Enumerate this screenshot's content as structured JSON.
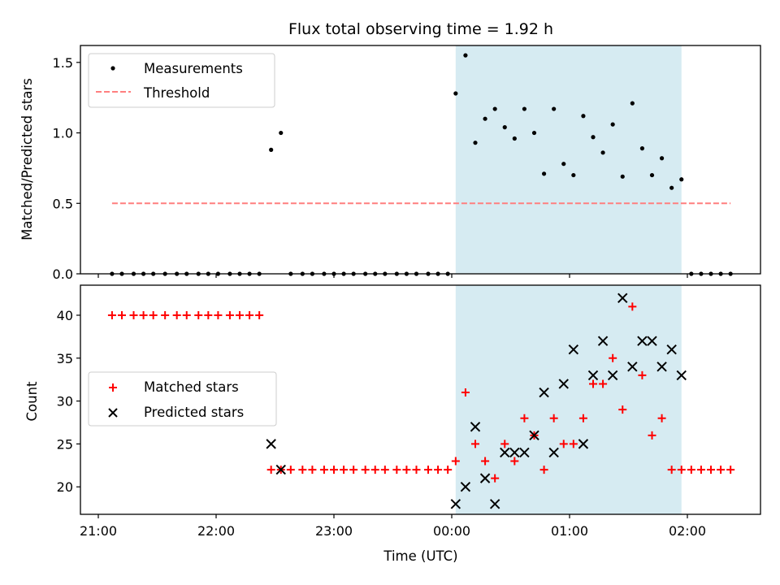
{
  "chart_data": [
    {
      "type": "scatter",
      "title": "Flux total observing time = 1.92 h",
      "xlabel": "",
      "ylabel": "Matched/Predicted stars",
      "ylim": [
        0,
        1.62
      ],
      "yticks": [
        "0.0",
        "0.5",
        "1.0",
        "1.5"
      ],
      "shaded_span": [
        "00:02",
        "01:57"
      ],
      "threshold": 0.5,
      "legend": {
        "placement": "upper-left",
        "entries": [
          "Measurements",
          "Threshold"
        ]
      },
      "series": [
        {
          "name": "Measurements",
          "color": "#000000",
          "marker": "dot",
          "points": [
            [
              "21:07",
              0
            ],
            [
              "21:12",
              0
            ],
            [
              "21:18",
              0
            ],
            [
              "21:23",
              0
            ],
            [
              "21:28",
              0
            ],
            [
              "21:34",
              0
            ],
            [
              "21:40",
              0
            ],
            [
              "21:45",
              0
            ],
            [
              "21:51",
              0
            ],
            [
              "21:56",
              0
            ],
            [
              "22:01",
              0
            ],
            [
              "22:07",
              0
            ],
            [
              "22:12",
              0
            ],
            [
              "22:17",
              0
            ],
            [
              "22:22",
              0
            ],
            [
              "22:28",
              0.88
            ],
            [
              "22:33",
              1.0
            ],
            [
              "22:38",
              0
            ],
            [
              "22:44",
              0
            ],
            [
              "22:49",
              0
            ],
            [
              "22:55",
              0
            ],
            [
              "23:00",
              0
            ],
            [
              "23:05",
              0
            ],
            [
              "23:10",
              0
            ],
            [
              "23:16",
              0
            ],
            [
              "23:21",
              0
            ],
            [
              "23:26",
              0
            ],
            [
              "23:32",
              0
            ],
            [
              "23:37",
              0
            ],
            [
              "23:42",
              0
            ],
            [
              "23:48",
              0
            ],
            [
              "23:53",
              0
            ],
            [
              "23:58",
              0
            ],
            [
              "00:02",
              1.28
            ],
            [
              "00:07",
              1.55
            ],
            [
              "00:12",
              0.93
            ],
            [
              "00:17",
              1.1
            ],
            [
              "00:22",
              1.17
            ],
            [
              "00:27",
              1.04
            ],
            [
              "00:32",
              0.96
            ],
            [
              "00:37",
              1.17
            ],
            [
              "00:42",
              1.0
            ],
            [
              "00:47",
              0.71
            ],
            [
              "00:52",
              1.17
            ],
            [
              "00:57",
              0.78
            ],
            [
              "01:02",
              0.7
            ],
            [
              "01:07",
              1.12
            ],
            [
              "01:12",
              0.97
            ],
            [
              "01:17",
              0.86
            ],
            [
              "01:22",
              1.06
            ],
            [
              "01:27",
              0.69
            ],
            [
              "01:32",
              1.21
            ],
            [
              "01:37",
              0.89
            ],
            [
              "01:42",
              0.7
            ],
            [
              "01:47",
              0.82
            ],
            [
              "01:52",
              0.61
            ],
            [
              "01:57",
              0.67
            ],
            [
              "02:02",
              0
            ],
            [
              "02:07",
              0
            ],
            [
              "02:12",
              0
            ],
            [
              "02:17",
              0
            ],
            [
              "02:22",
              0
            ]
          ]
        },
        {
          "name": "Threshold",
          "color": "#ff7f7f",
          "style": "dashed",
          "points": [
            [
              "21:07",
              0.5
            ],
            [
              "02:22",
              0.5
            ]
          ]
        }
      ]
    },
    {
      "type": "scatter",
      "xlabel": "Time (UTC)",
      "ylabel": "Count",
      "ylim": [
        16.8,
        43.5
      ],
      "yticks": [
        "20",
        "25",
        "30",
        "35",
        "40"
      ],
      "xticks": [
        "21:00",
        "22:00",
        "23:00",
        "00:00",
        "01:00",
        "02:00"
      ],
      "shaded_span": [
        "00:02",
        "01:57"
      ],
      "legend": {
        "placement": "center-left",
        "entries": [
          "Matched stars",
          "Predicted stars"
        ]
      },
      "series": [
        {
          "name": "Matched stars",
          "color": "#ff0000",
          "marker": "plus",
          "points": [
            [
              "21:07",
              40
            ],
            [
              "21:12",
              40
            ],
            [
              "21:18",
              40
            ],
            [
              "21:23",
              40
            ],
            [
              "21:28",
              40
            ],
            [
              "21:34",
              40
            ],
            [
              "21:40",
              40
            ],
            [
              "21:45",
              40
            ],
            [
              "21:51",
              40
            ],
            [
              "21:56",
              40
            ],
            [
              "22:01",
              40
            ],
            [
              "22:07",
              40
            ],
            [
              "22:12",
              40
            ],
            [
              "22:17",
              40
            ],
            [
              "22:22",
              40
            ],
            [
              "22:28",
              22
            ],
            [
              "22:33",
              22
            ],
            [
              "22:38",
              22
            ],
            [
              "22:44",
              22
            ],
            [
              "22:49",
              22
            ],
            [
              "22:55",
              22
            ],
            [
              "23:00",
              22
            ],
            [
              "23:05",
              22
            ],
            [
              "23:10",
              22
            ],
            [
              "23:16",
              22
            ],
            [
              "23:21",
              22
            ],
            [
              "23:26",
              22
            ],
            [
              "23:32",
              22
            ],
            [
              "23:37",
              22
            ],
            [
              "23:42",
              22
            ],
            [
              "23:48",
              22
            ],
            [
              "23:53",
              22
            ],
            [
              "23:58",
              22
            ],
            [
              "00:02",
              23
            ],
            [
              "00:07",
              31
            ],
            [
              "00:12",
              25
            ],
            [
              "00:17",
              23
            ],
            [
              "00:22",
              21
            ],
            [
              "00:27",
              25
            ],
            [
              "00:32",
              23
            ],
            [
              "00:37",
              28
            ],
            [
              "00:42",
              26
            ],
            [
              "00:47",
              22
            ],
            [
              "00:52",
              28
            ],
            [
              "00:57",
              25
            ],
            [
              "01:02",
              25
            ],
            [
              "01:07",
              28
            ],
            [
              "01:12",
              32
            ],
            [
              "01:17",
              32
            ],
            [
              "01:22",
              35
            ],
            [
              "01:27",
              29
            ],
            [
              "01:32",
              41
            ],
            [
              "01:37",
              33
            ],
            [
              "01:42",
              26
            ],
            [
              "01:47",
              28
            ],
            [
              "01:52",
              22
            ],
            [
              "01:57",
              22
            ],
            [
              "02:02",
              22
            ],
            [
              "02:07",
              22
            ],
            [
              "02:12",
              22
            ],
            [
              "02:17",
              22
            ],
            [
              "02:22",
              22
            ]
          ]
        },
        {
          "name": "Predicted stars",
          "color": "#000000",
          "marker": "x",
          "points": [
            [
              "22:28",
              25
            ],
            [
              "22:33",
              22
            ],
            [
              "00:02",
              18
            ],
            [
              "00:07",
              20
            ],
            [
              "00:12",
              27
            ],
            [
              "00:17",
              21
            ],
            [
              "00:22",
              18
            ],
            [
              "00:27",
              24
            ],
            [
              "00:32",
              24
            ],
            [
              "00:37",
              24
            ],
            [
              "00:42",
              26
            ],
            [
              "00:47",
              31
            ],
            [
              "00:52",
              24
            ],
            [
              "00:57",
              32
            ],
            [
              "01:02",
              36
            ],
            [
              "01:07",
              25
            ],
            [
              "01:12",
              33
            ],
            [
              "01:17",
              37
            ],
            [
              "01:22",
              33
            ],
            [
              "01:27",
              42
            ],
            [
              "01:32",
              34
            ],
            [
              "01:37",
              37
            ],
            [
              "01:42",
              37
            ],
            [
              "01:47",
              34
            ],
            [
              "01:52",
              36
            ],
            [
              "01:57",
              33
            ]
          ]
        }
      ]
    }
  ]
}
